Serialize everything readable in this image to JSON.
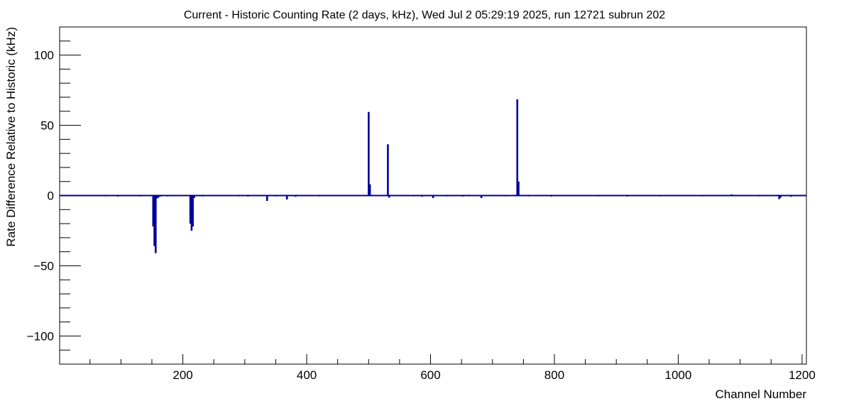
{
  "chart_data": {
    "type": "bar",
    "title": "Current - Historic Counting Rate (2 days, kHz), Wed Jul  2 05:29:19 2025, run 12721 subrun 202",
    "xlabel": "Channel Number",
    "ylabel": "Rate Difference Relative to Historic (kHz)",
    "xlim": [
      1,
      1207
    ],
    "ylim": [
      -120,
      120
    ],
    "x_ticks": [
      200,
      400,
      600,
      800,
      1000,
      1200
    ],
    "x_tick_labels": [
      "200",
      "400",
      "600",
      "800",
      "1000",
      "1200"
    ],
    "y_ticks": [
      -100,
      -50,
      0,
      50,
      100
    ],
    "y_tick_labels": [
      "−100",
      "−50",
      "0",
      "50",
      "100"
    ],
    "grid": false,
    "legend": "none",
    "line_color": "#000099",
    "series": [
      {
        "x": [
          38,
          62,
          75,
          88,
          95,
          100,
          118,
          130,
          152,
          154,
          156,
          158,
          160,
          163,
          175,
          186,
          200,
          212,
          214,
          216,
          218,
          232,
          245,
          262,
          290,
          305,
          322,
          336,
          350,
          368,
          382,
          398,
          420,
          455,
          500,
          502,
          531,
          533,
          548,
          572,
          586,
          596,
          604,
          626,
          640,
          652,
          662,
          682,
          722,
          740,
          742,
          758,
          775,
          795,
          815,
          842,
          870,
          896,
          918,
          942,
          970,
          998,
          1038,
          1060,
          1086,
          1105,
          1130,
          1163,
          1165,
          1182
        ],
        "y": [
          -0.5,
          -0.4,
          -0.6,
          -0.5,
          -0.7,
          -0.5,
          -0.4,
          -0.6,
          -22,
          -36,
          -41,
          -2,
          -1.5,
          -0.8,
          -0.6,
          -0.4,
          -0.5,
          -20,
          -25,
          -22,
          -1.8,
          -0.6,
          -0.5,
          -0.4,
          -0.6,
          -0.7,
          -0.5,
          -3.8,
          -0.6,
          -2.8,
          -0.8,
          -0.5,
          -0.6,
          -0.5,
          59.5,
          8,
          36.5,
          -1.5,
          0.5,
          -0.6,
          -0.8,
          -0.5,
          -1.8,
          -0.6,
          -0.5,
          -0.7,
          0.6,
          -1.8,
          -0.6,
          68.5,
          10,
          -0.6,
          -0.5,
          -0.7,
          -0.5,
          -0.4,
          -0.6,
          -0.5,
          -0.7,
          -0.5,
          -0.6,
          -0.5,
          -0.6,
          -0.4,
          0.8,
          -0.5,
          -0.6,
          -2.5,
          -1.5,
          -0.8
        ]
      }
    ]
  }
}
